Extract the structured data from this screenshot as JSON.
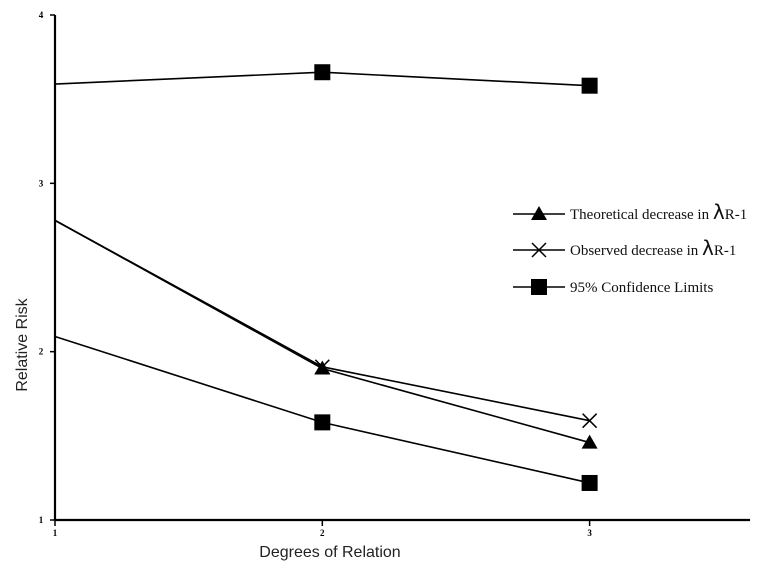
{
  "chart_data": {
    "type": "line",
    "xlabel": "Degrees of Relation",
    "ylabel": "Relative Risk",
    "x": [
      1,
      2,
      3
    ],
    "x_ticks": [
      "1",
      "2",
      "3"
    ],
    "y_ticks": [
      "1",
      "2",
      "3",
      "4"
    ],
    "xlim": [
      1,
      3.6
    ],
    "ylim": [
      1,
      4
    ],
    "grid": false,
    "legend_position": "right",
    "series": [
      {
        "name": "Theoretical decrease in λR-1",
        "label_text": "Theoretical decrease in ",
        "label_symbol": "λ",
        "label_suffix": "R-1",
        "marker": "triangle",
        "values": [
          2.78,
          1.9,
          1.46
        ]
      },
      {
        "name": "Observed decrease in λR-1",
        "label_text": "Observed decrease in ",
        "label_symbol": "λ",
        "label_suffix": "R-1",
        "marker": "x",
        "values": [
          2.78,
          1.91,
          1.59
        ]
      },
      {
        "name": "95% Confidence Limits",
        "label_text": "95% Confidence Limits",
        "label_symbol": "",
        "label_suffix": "",
        "marker": "square",
        "values": [
          2.09,
          1.58,
          1.22
        ],
        "upper_values": [
          3.59,
          3.66,
          3.58
        ]
      }
    ]
  }
}
